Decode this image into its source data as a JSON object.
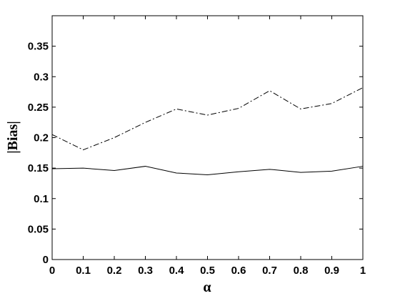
{
  "chart_data": {
    "type": "line",
    "x_label": "α",
    "y_label": "|Bias|",
    "x": [
      0,
      0.1,
      0.2,
      0.3,
      0.4,
      0.5,
      0.6,
      0.7,
      0.8,
      0.9,
      1
    ],
    "series": [
      {
        "color": "#000000",
        "linestyle": "dashdot",
        "values": [
          0.205,
          0.18,
          0.2,
          0.225,
          0.247,
          0.237,
          0.248,
          0.277,
          0.247,
          0.256,
          0.282
        ]
      },
      {
        "color": "#000000",
        "linestyle": "solid",
        "values": [
          0.149,
          0.15,
          0.146,
          0.153,
          0.142,
          0.139,
          0.144,
          0.148,
          0.143,
          0.145,
          0.153
        ]
      }
    ],
    "xlim": [
      0,
      1
    ],
    "xticks": [
      0,
      0.1,
      0.2,
      0.3,
      0.4,
      0.5,
      0.6,
      0.7,
      0.8,
      0.9,
      1
    ],
    "ylim": [
      0,
      0.4
    ],
    "yticks": [
      0,
      0.05,
      0.1,
      0.15,
      0.2,
      0.25,
      0.3,
      0.35
    ],
    "grid": false
  }
}
